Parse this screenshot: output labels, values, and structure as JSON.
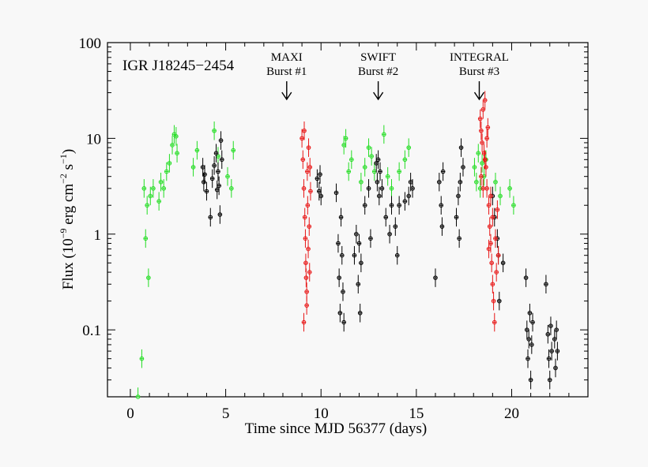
{
  "chart_data": {
    "type": "scatter",
    "source_label": "IGR J18245−2454",
    "xlabel": "Time since MJD 56377 (days)",
    "ylabel_main": "Flux (10",
    "ylabel_exp1": "−9",
    "ylabel_mid": " erg cm",
    "ylabel_exp2": "−2",
    "ylabel_mid2": " s",
    "ylabel_exp3": "−1",
    "ylabel_end": ")",
    "x_scale": "linear",
    "y_scale": "log",
    "xlim": [
      -1.2,
      24
    ],
    "ylim": [
      0.02,
      100
    ],
    "x_ticks": [
      0,
      5,
      10,
      15,
      20
    ],
    "x_tick_labels": [
      "0",
      "5",
      "10",
      "15",
      "20"
    ],
    "y_ticks": [
      0.1,
      1,
      10,
      100
    ],
    "y_tick_labels": [
      "0.1",
      "1",
      "10",
      "100"
    ],
    "grid": false,
    "annotations": [
      {
        "line1": "MAXI",
        "line2": "Burst #1",
        "x": 8.2
      },
      {
        "line1": "SWIFT",
        "line2": "Burst #2",
        "x": 13.0
      },
      {
        "line1": "INTEGRAL",
        "line2": "Burst #3",
        "x": 18.3
      }
    ],
    "series": [
      {
        "color": "#22dd22",
        "points": [
          [
            0.4,
            0.02
          ],
          [
            0.6,
            0.05
          ],
          [
            0.72,
            3.0
          ],
          [
            0.8,
            0.9
          ],
          [
            0.88,
            2.0
          ],
          [
            0.95,
            0.35
          ],
          [
            1.05,
            2.5
          ],
          [
            1.2,
            3.0
          ],
          [
            1.5,
            2.2
          ],
          [
            1.6,
            3.5
          ],
          [
            1.75,
            3.0
          ],
          [
            1.9,
            4.5
          ],
          [
            2.05,
            5.5
          ],
          [
            2.2,
            8.5
          ],
          [
            2.3,
            11.0
          ],
          [
            2.4,
            10.5
          ],
          [
            2.45,
            7.0
          ],
          [
            3.3,
            5.0
          ],
          [
            3.5,
            7.5
          ],
          [
            4.4,
            12.0
          ],
          [
            4.6,
            6.5
          ],
          [
            5.1,
            4.0
          ],
          [
            5.3,
            3.0
          ],
          [
            5.4,
            7.5
          ],
          [
            11.2,
            8.5
          ],
          [
            11.3,
            10.0
          ],
          [
            11.45,
            4.5
          ],
          [
            11.6,
            6.0
          ],
          [
            12.1,
            3.5
          ],
          [
            12.3,
            5.0
          ],
          [
            12.5,
            8.0
          ],
          [
            12.65,
            6.5
          ],
          [
            12.8,
            4.5
          ],
          [
            13.3,
            11.0
          ],
          [
            13.5,
            4.0
          ],
          [
            13.7,
            3.0
          ],
          [
            14.1,
            4.5
          ],
          [
            14.4,
            6.0
          ],
          [
            14.6,
            8.0
          ],
          [
            18.05,
            5.0
          ],
          [
            18.15,
            3.5
          ],
          [
            18.25,
            7.0
          ],
          [
            18.35,
            3.0
          ],
          [
            18.45,
            5.5
          ],
          [
            18.55,
            4.0
          ],
          [
            18.65,
            6.0
          ],
          [
            19.15,
            3.5
          ],
          [
            19.4,
            2.5
          ],
          [
            19.9,
            3.0
          ],
          [
            20.1,
            2.0
          ]
        ]
      },
      {
        "color": "#000000",
        "points": [
          [
            3.8,
            5.0
          ],
          [
            3.85,
            3.5
          ],
          [
            3.9,
            4.2
          ],
          [
            4.0,
            2.8
          ],
          [
            4.2,
            1.5
          ],
          [
            4.3,
            3.8
          ],
          [
            4.4,
            5.2
          ],
          [
            4.5,
            7.0
          ],
          [
            4.55,
            2.9
          ],
          [
            4.6,
            4.5
          ],
          [
            4.65,
            3.2
          ],
          [
            4.7,
            1.6
          ],
          [
            4.75,
            9.5
          ],
          [
            4.8,
            6.0
          ],
          [
            9.8,
            3.8
          ],
          [
            9.9,
            2.8
          ],
          [
            9.95,
            4.2
          ],
          [
            10.0,
            2.5
          ],
          [
            10.8,
            2.7
          ],
          [
            10.9,
            0.8
          ],
          [
            10.95,
            0.35
          ],
          [
            11.0,
            0.15
          ],
          [
            11.05,
            1.5
          ],
          [
            11.1,
            0.6
          ],
          [
            11.15,
            0.25
          ],
          [
            11.2,
            0.12
          ],
          [
            11.75,
            0.6
          ],
          [
            11.85,
            1.0
          ],
          [
            11.95,
            0.3
          ],
          [
            12.0,
            0.8
          ],
          [
            12.05,
            0.15
          ],
          [
            12.1,
            0.5
          ],
          [
            12.3,
            2.0
          ],
          [
            12.5,
            3.0
          ],
          [
            12.6,
            0.9
          ],
          [
            12.9,
            5.5
          ],
          [
            12.95,
            3.5
          ],
          [
            13.0,
            6.0
          ],
          [
            13.05,
            2.5
          ],
          [
            13.1,
            4.5
          ],
          [
            13.2,
            3.0
          ],
          [
            13.4,
            1.5
          ],
          [
            13.6,
            1.0
          ],
          [
            13.7,
            2.0
          ],
          [
            13.9,
            1.2
          ],
          [
            14.0,
            0.6
          ],
          [
            14.1,
            2.0
          ],
          [
            14.4,
            2.2
          ],
          [
            14.6,
            2.5
          ],
          [
            14.7,
            3.5
          ],
          [
            14.8,
            3.0
          ],
          [
            16.0,
            0.35
          ],
          [
            16.2,
            3.5
          ],
          [
            16.3,
            2.0
          ],
          [
            16.35,
            1.2
          ],
          [
            16.4,
            4.5
          ],
          [
            17.1,
            1.5
          ],
          [
            17.2,
            2.5
          ],
          [
            17.25,
            0.9
          ],
          [
            17.3,
            3.5
          ],
          [
            17.35,
            8.0
          ],
          [
            17.45,
            5.0
          ],
          [
            19.0,
            2.5
          ],
          [
            19.1,
            1.5
          ],
          [
            19.25,
            0.9
          ],
          [
            19.3,
            0.6
          ],
          [
            19.35,
            0.2
          ],
          [
            19.55,
            0.5
          ],
          [
            20.75,
            0.35
          ],
          [
            20.8,
            0.1
          ],
          [
            20.85,
            0.05
          ],
          [
            20.9,
            0.08
          ],
          [
            20.95,
            0.15
          ],
          [
            21.0,
            0.03
          ],
          [
            21.05,
            0.07
          ],
          [
            21.1,
            0.12
          ],
          [
            21.8,
            0.3
          ],
          [
            21.9,
            0.09
          ],
          [
            21.95,
            0.05
          ],
          [
            22.0,
            0.03
          ],
          [
            22.05,
            0.11
          ],
          [
            22.1,
            0.06
          ],
          [
            22.25,
            0.08
          ],
          [
            22.3,
            0.04
          ],
          [
            22.35,
            0.1
          ],
          [
            22.4,
            0.06
          ]
        ]
      },
      {
        "color": "#e81515",
        "points": [
          [
            9.0,
            10.0
          ],
          [
            9.05,
            6.0
          ],
          [
            9.1,
            3.0
          ],
          [
            9.12,
            12.0
          ],
          [
            9.15,
            1.5
          ],
          [
            9.18,
            0.9
          ],
          [
            9.2,
            0.5
          ],
          [
            9.22,
            0.35
          ],
          [
            9.25,
            0.25
          ],
          [
            9.28,
            4.5
          ],
          [
            9.3,
            2.0
          ],
          [
            9.33,
            0.7
          ],
          [
            9.35,
            8.0
          ],
          [
            9.38,
            1.2
          ],
          [
            9.4,
            0.4
          ],
          [
            9.42,
            5.0
          ],
          [
            9.45,
            2.8
          ],
          [
            9.1,
            0.12
          ],
          [
            9.25,
            0.18
          ],
          [
            18.35,
            16.0
          ],
          [
            18.4,
            12.0
          ],
          [
            18.45,
            9.0
          ],
          [
            18.5,
            20.0
          ],
          [
            18.55,
            7.0
          ],
          [
            18.6,
            25.0
          ],
          [
            18.65,
            5.0
          ],
          [
            18.7,
            3.0
          ],
          [
            18.75,
            13.0
          ],
          [
            18.8,
            2.0
          ],
          [
            18.85,
            1.2
          ],
          [
            18.9,
            0.8
          ],
          [
            18.95,
            0.5
          ],
          [
            19.0,
            0.3
          ],
          [
            19.05,
            0.2
          ],
          [
            19.1,
            0.12
          ],
          [
            19.15,
            0.9
          ],
          [
            19.2,
            0.4
          ],
          [
            19.25,
            1.8
          ],
          [
            19.3,
            0.6
          ],
          [
            18.4,
            4.0
          ],
          [
            18.5,
            3.0
          ],
          [
            18.6,
            6.0
          ],
          [
            18.7,
            10.0
          ],
          [
            18.8,
            0.7
          ],
          [
            18.9,
            2.5
          ],
          [
            19.0,
            1.5
          ]
        ]
      }
    ]
  }
}
